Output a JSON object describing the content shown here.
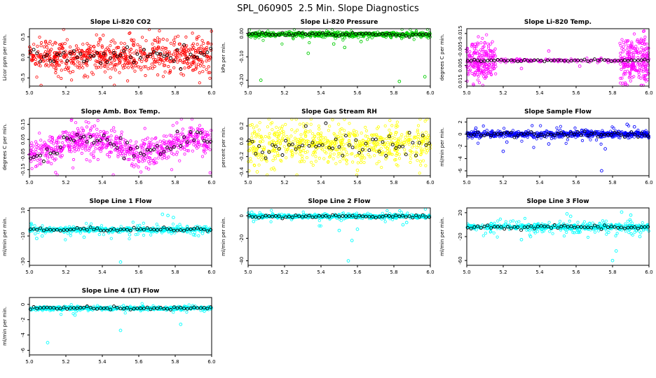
{
  "title": "SPL_060905  2.5 Min. Slope Diagnostics",
  "colors": {
    "frame": "#000000",
    "background": "#ffffff"
  },
  "chart_data": [
    {
      "slug": "li820-co2",
      "type": "scatter",
      "title": "Slope Li-820 CO2",
      "ylabel": "Licor ppm per min.",
      "xlim": [
        5.0,
        6.0
      ],
      "xticks": [
        5.0,
        5.2,
        5.4,
        5.6,
        5.8,
        6.0
      ],
      "xtick_labels": [
        "5.0",
        "5.2",
        "5.4",
        "5.6",
        "5.8",
        "6.0"
      ],
      "ylim": [
        -0.7,
        0.7
      ],
      "reversed": false,
      "yticks": [
        -0.5,
        0.0,
        0.5
      ],
      "ytick_labels": [
        "-0.5",
        "0.0",
        "0.5"
      ],
      "series": [
        {
          "name": "slope-samples",
          "color": "#ff0000",
          "pattern": "band",
          "n": 680,
          "center": 0.03,
          "sd": 0.2,
          "sd2": 0.3,
          "frac2": 0.1,
          "seed": 11
        },
        {
          "name": "subsampled-means",
          "color": "#000000",
          "pattern": "grid-band",
          "n": 55,
          "center": 0.03,
          "sd": 0.13,
          "seed": 12
        }
      ],
      "outliers": []
    },
    {
      "slug": "li820-pressure",
      "type": "scatter",
      "title": "Slope Li-820 Pressure",
      "ylabel": "kPa per min.",
      "xlim": [
        5.0,
        6.0
      ],
      "xticks": [
        5.0,
        5.2,
        5.4,
        5.6,
        5.8,
        6.0
      ],
      "xtick_labels": [
        "5.0",
        "5.2",
        "5.4",
        "5.6",
        "5.8",
        "6.0"
      ],
      "ylim": [
        -0.225,
        0.02
      ],
      "reversed": false,
      "yticks": [
        0.0,
        -0.1,
        -0.2
      ],
      "ytick_labels": [
        "0.00",
        "-0.10",
        "-0.20"
      ],
      "series": [
        {
          "name": "slope-samples",
          "color": "#00cd00",
          "pattern": "band",
          "n": 620,
          "center": -0.004,
          "sd": 0.005,
          "sd2": 0.016,
          "frac2": 0.08,
          "seed": 21
        },
        {
          "name": "subsampled-means",
          "color": "#000000",
          "pattern": "grid-band",
          "n": 55,
          "center": -0.003,
          "sd": 0.004,
          "seed": 22
        }
      ],
      "outliers": [
        [
          5.07,
          -0.2
        ],
        [
          5.33,
          -0.085
        ],
        [
          5.47,
          -0.045
        ],
        [
          5.53,
          -0.06
        ],
        [
          5.62,
          -0.035
        ],
        [
          5.83,
          -0.205
        ],
        [
          5.97,
          -0.185
        ]
      ]
    },
    {
      "slug": "li820-temp",
      "type": "scatter",
      "title": "Slope Li-820 Temp.",
      "ylabel": "degrees C per min.",
      "xlim": [
        5.0,
        6.0
      ],
      "xticks": [
        5.0,
        5.2,
        5.4,
        5.6,
        5.8,
        6.0
      ],
      "xtick_labels": [
        "5.0",
        "5.2",
        "5.4",
        "5.6",
        "5.8",
        "6.0"
      ],
      "ylim": [
        -0.018,
        0.018
      ],
      "reversed": true,
      "yticks": [
        -0.015,
        -0.005,
        0.005,
        0.015
      ],
      "ytick_labels": [
        "-0.015",
        "-0.005",
        "0.005",
        "0.015"
      ],
      "series": [
        {
          "name": "slope-samples",
          "color": "#ff00ff",
          "pattern": "edge-clouds",
          "n": 560,
          "center": 0.002,
          "mid_sd": 0.0006,
          "edge_sd": 0.007,
          "edge_lo": 5.16,
          "edge_hi": 5.84,
          "seed": 31
        },
        {
          "name": "subsampled-means",
          "color": "#000000",
          "pattern": "grid-band",
          "n": 55,
          "center": 0.002,
          "sd": 0.0004,
          "seed": 32
        }
      ],
      "outliers": [
        [
          5.3,
          0.007
        ],
        [
          5.45,
          -0.004
        ],
        [
          5.62,
          0.0055
        ]
      ]
    },
    {
      "slug": "amb-box-temp",
      "type": "scatter",
      "title": "Slope Amb. Box Temp.",
      "ylabel": "degrees C per min.",
      "xlim": [
        5.0,
        6.0
      ],
      "xticks": [
        5.0,
        5.2,
        5.4,
        5.6,
        5.8,
        6.0
      ],
      "xtick_labels": [
        "5.0",
        "5.2",
        "5.4",
        "5.6",
        "5.8",
        "6.0"
      ],
      "ylim": [
        -0.19,
        0.19
      ],
      "reversed": false,
      "yticks": [
        -0.15,
        -0.05,
        0.05,
        0.15
      ],
      "ytick_labels": [
        "-0.15",
        "-0.05",
        "0.05",
        "0.15"
      ],
      "series": [
        {
          "name": "slope-samples",
          "color": "#ff00ff",
          "pattern": "wave",
          "n": 680,
          "center": 0.01,
          "amp": 0.05,
          "cycles": 1.7,
          "phase": -2.0,
          "sd": 0.045,
          "sd2": 0.075,
          "frac2": 0.1,
          "seed": 41
        },
        {
          "name": "subsampled-means",
          "color": "#000000",
          "pattern": "grid-wave",
          "n": 55,
          "center": 0.01,
          "amp": 0.05,
          "cycles": 1.7,
          "phase": -2.0,
          "sd": 0.03,
          "seed": 42
        }
      ],
      "outliers": []
    },
    {
      "slug": "gas-stream-rh",
      "type": "scatter",
      "title": "Slope Gas Stream RH",
      "ylabel": "percent per min.",
      "xlim": [
        5.0,
        6.0
      ],
      "xticks": [
        5.0,
        5.2,
        5.4,
        5.6,
        5.8,
        6.0
      ],
      "xtick_labels": [
        "5.0",
        "5.2",
        "5.4",
        "5.6",
        "5.8",
        "6.0"
      ],
      "ylim": [
        -0.45,
        0.3
      ],
      "reversed": false,
      "yticks": [
        -0.4,
        -0.2,
        0.0,
        0.2
      ],
      "ytick_labels": [
        "-0.4",
        "-0.2",
        "0.0",
        "0.2"
      ],
      "series": [
        {
          "name": "slope-samples",
          "color": "#ffff00",
          "pattern": "band",
          "n": 660,
          "center": -0.05,
          "sd": 0.12,
          "sd2": 0.18,
          "frac2": 0.12,
          "seed": 51
        },
        {
          "name": "subsampled-means",
          "color": "#000000",
          "pattern": "grid-band",
          "n": 55,
          "center": -0.05,
          "sd": 0.09,
          "seed": 52
        }
      ],
      "outliers": [
        [
          5.05,
          -0.4
        ],
        [
          5.6,
          -0.38
        ]
      ]
    },
    {
      "slug": "sample-flow",
      "type": "scatter",
      "title": "Slope Sample Flow",
      "ylabel": "ml/min per min.",
      "xlim": [
        5.0,
        6.0
      ],
      "xticks": [
        5.0,
        5.2,
        5.4,
        5.6,
        5.8,
        6.0
      ],
      "xtick_labels": [
        "5.0",
        "5.2",
        "5.4",
        "5.6",
        "5.8",
        "6.0"
      ],
      "ylim": [
        -6.8,
        2.6
      ],
      "reversed": false,
      "yticks": [
        -6,
        -4,
        -2,
        0,
        2
      ],
      "ytick_labels": [
        "-6",
        "-4",
        "-2",
        "0",
        "2"
      ],
      "series": [
        {
          "name": "slope-samples",
          "color": "#0000ff",
          "pattern": "band",
          "n": 620,
          "center": 0.0,
          "sd": 0.25,
          "sd2": 0.8,
          "frac2": 0.12,
          "seed": 61
        },
        {
          "name": "subsampled-means",
          "color": "#000000",
          "pattern": "grid-band",
          "n": 55,
          "center": -0.05,
          "sd": 0.2,
          "seed": 62
        }
      ],
      "outliers": [
        [
          5.05,
          1.0
        ],
        [
          5.2,
          -2.8
        ],
        [
          5.22,
          -1.3
        ],
        [
          5.45,
          -1.6
        ],
        [
          5.74,
          -6.0
        ],
        [
          5.76,
          -2.4
        ],
        [
          5.88,
          1.6
        ],
        [
          5.92,
          1.2
        ]
      ]
    },
    {
      "slug": "line1-flow",
      "type": "scatter",
      "title": "Slope Line 1 Flow",
      "ylabel": "ml/min per min.",
      "xlim": [
        5.0,
        6.0
      ],
      "xticks": [
        5.0,
        5.2,
        5.4,
        5.6,
        5.8,
        6.0
      ],
      "xtick_labels": [
        "5.0",
        "5.2",
        "5.4",
        "5.6",
        "5.8",
        "6.0"
      ],
      "ylim": [
        -33,
        12
      ],
      "reversed": false,
      "yticks": [
        -30,
        -10,
        10
      ],
      "ytick_labels": [
        "-30",
        "-10",
        "10"
      ],
      "series": [
        {
          "name": "slope-samples",
          "color": "#00ffff",
          "pattern": "band",
          "n": 560,
          "center": -5.0,
          "sd": 0.8,
          "sd2": 3.2,
          "frac2": 0.18,
          "seed": 71
        },
        {
          "name": "subsampled-means",
          "color": "#000000",
          "pattern": "grid-band",
          "n": 55,
          "center": -5.0,
          "sd": 0.7,
          "seed": 72
        }
      ],
      "outliers": [
        [
          5.04,
          -12
        ],
        [
          5.07,
          -10
        ],
        [
          5.3,
          -11
        ],
        [
          5.5,
          -30.5
        ],
        [
          5.55,
          -9
        ],
        [
          5.73,
          7
        ],
        [
          5.76,
          6
        ],
        [
          5.79,
          4.5
        ],
        [
          5.9,
          -9
        ],
        [
          5.95,
          -8
        ]
      ]
    },
    {
      "slug": "line2-flow",
      "type": "scatter",
      "title": "Slope Line 2 Flow",
      "ylabel": "ml/min per min.",
      "xlim": [
        5.0,
        6.0
      ],
      "xticks": [
        5.0,
        5.2,
        5.4,
        5.6,
        5.8,
        6.0
      ],
      "xtick_labels": [
        "5.0",
        "5.2",
        "5.4",
        "5.6",
        "5.8",
        "6.0"
      ],
      "ylim": [
        -44,
        7
      ],
      "reversed": false,
      "yticks": [
        -40,
        -20,
        0
      ],
      "ytick_labels": [
        "-40",
        "-20",
        "0"
      ],
      "series": [
        {
          "name": "slope-samples",
          "color": "#00ffff",
          "pattern": "band",
          "n": 560,
          "center": -0.5,
          "sd": 0.8,
          "sd2": 2.8,
          "frac2": 0.12,
          "seed": 81
        },
        {
          "name": "subsampled-means",
          "color": "#000000",
          "pattern": "grid-band",
          "n": 55,
          "center": -0.5,
          "sd": 0.7,
          "seed": 82
        }
      ],
      "outliers": [
        [
          5.02,
          3
        ],
        [
          5.03,
          -5
        ],
        [
          5.5,
          -13
        ],
        [
          5.55,
          -40
        ],
        [
          5.57,
          -22
        ],
        [
          5.6,
          -12
        ],
        [
          5.85,
          -8
        ],
        [
          5.87,
          -6
        ]
      ]
    },
    {
      "slug": "line3-flow",
      "type": "scatter",
      "title": "Slope Line 3 Flow",
      "ylabel": "ml/min per min.",
      "xlim": [
        5.0,
        6.0
      ],
      "xticks": [
        5.0,
        5.2,
        5.4,
        5.6,
        5.8,
        6.0
      ],
      "xtick_labels": [
        "5.0",
        "5.2",
        "5.4",
        "5.6",
        "5.8",
        "6.0"
      ],
      "ylim": [
        -68,
        28
      ],
      "reversed": false,
      "yticks": [
        -60,
        -20,
        20
      ],
      "ytick_labels": [
        "-60",
        "-20",
        "20"
      ],
      "series": [
        {
          "name": "slope-samples",
          "color": "#00ffff",
          "pattern": "band",
          "n": 600,
          "center": -4.0,
          "sd": 2.0,
          "sd2": 7.0,
          "frac2": 0.25,
          "seed": 91
        },
        {
          "name": "subsampled-means",
          "color": "#000000",
          "pattern": "grid-band",
          "n": 55,
          "center": -4.0,
          "sd": 1.5,
          "seed": 92
        }
      ],
      "outliers": [
        [
          5.3,
          -25
        ],
        [
          5.35,
          -20
        ],
        [
          5.55,
          18
        ],
        [
          5.57,
          14
        ],
        [
          5.8,
          -60
        ],
        [
          5.82,
          -44
        ],
        [
          5.85,
          21
        ],
        [
          5.9,
          16
        ],
        [
          5.95,
          -20
        ]
      ]
    },
    {
      "slug": "line4-lt-flow",
      "type": "scatter",
      "title": "Slope Line 4 (LT) Flow",
      "ylabel": "ml/min per min.",
      "xlim": [
        5.0,
        6.0
      ],
      "xticks": [
        5.0,
        5.2,
        5.4,
        5.6,
        5.8,
        6.0
      ],
      "xtick_labels": [
        "5.0",
        "5.2",
        "5.4",
        "5.6",
        "5.8",
        "6.0"
      ],
      "ylim": [
        -6.6,
        0.9
      ],
      "reversed": false,
      "yticks": [
        0,
        -2,
        -4,
        -6
      ],
      "ytick_labels": [
        "0",
        "-2",
        "-4",
        "-6"
      ],
      "series": [
        {
          "name": "slope-samples",
          "color": "#00ffff",
          "pattern": "band",
          "n": 520,
          "center": -0.5,
          "sd": 0.12,
          "sd2": 0.35,
          "frac2": 0.08,
          "seed": 101
        },
        {
          "name": "subsampled-means",
          "color": "#000000",
          "pattern": "grid-band",
          "n": 55,
          "center": -0.5,
          "sd": 0.1,
          "seed": 102
        }
      ],
      "outliers": [
        [
          5.1,
          -5.0
        ],
        [
          5.25,
          -1.4
        ],
        [
          5.5,
          -3.4
        ],
        [
          5.83,
          -2.6
        ]
      ]
    }
  ]
}
